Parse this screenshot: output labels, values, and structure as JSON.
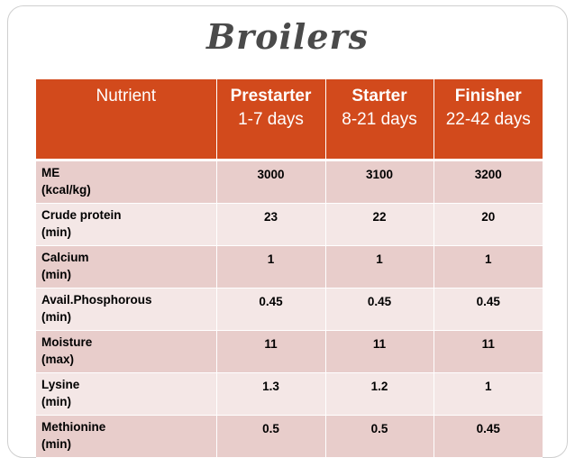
{
  "title": "Broilers",
  "table": {
    "headers": [
      {
        "label": "Nutrient",
        "sub": ""
      },
      {
        "label": "Prestarter",
        "sub": "1-7 days"
      },
      {
        "label": "Starter",
        "sub": "8-21 days"
      },
      {
        "label": "Finisher",
        "sub": "22-42 days"
      }
    ],
    "rows": [
      {
        "name": "ME",
        "qualifier": "(kcal/kg)",
        "prestarter": "3000",
        "starter": "3100",
        "finisher": "3200"
      },
      {
        "name": "Crude protein",
        "qualifier": "(min)",
        "prestarter": "23",
        "starter": "22",
        "finisher": "20"
      },
      {
        "name": "Calcium",
        "qualifier": "(min)",
        "prestarter": "1",
        "starter": "1",
        "finisher": "1"
      },
      {
        "name": "Avail.Phosphorous",
        "qualifier": "(min)",
        "prestarter": "0.45",
        "starter": "0.45",
        "finisher": "0.45"
      },
      {
        "name": "Moisture",
        "qualifier": "(max)",
        "prestarter": "11",
        "starter": "11",
        "finisher": "11"
      },
      {
        "name": "Lysine",
        "qualifier": "(min)",
        "prestarter": "1.3",
        "starter": "1.2",
        "finisher": "1"
      },
      {
        "name": "Methionine",
        "qualifier": "(min)",
        "prestarter": "0.5",
        "starter": "0.5",
        "finisher": "0.45"
      }
    ]
  },
  "colors": {
    "header_bg": "#d24a1c",
    "row_dark": "#e8cdcb",
    "row_light": "#f4e7e6",
    "title_text": "#4a4a4a"
  }
}
